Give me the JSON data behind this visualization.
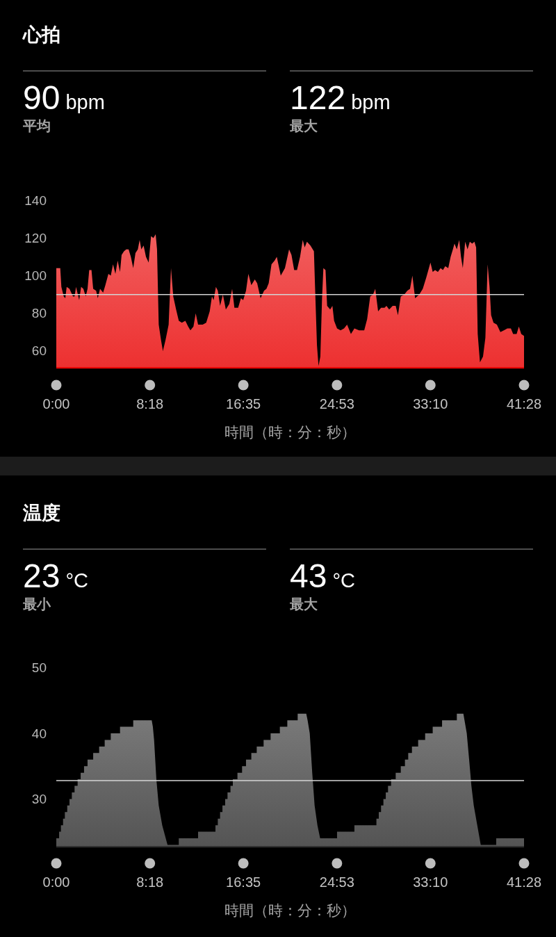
{
  "chart_data": [
    {
      "type": "area",
      "title": "心拍",
      "xlabel": "時間（時：分：秒）",
      "annotations": [
        "90 bpm",
        "平均",
        "122 bpm",
        "最大"
      ],
      "color": "#ef4848",
      "x": [
        0,
        0.35,
        0.45,
        0.66,
        0.8,
        0.92,
        1.17,
        1.48,
        1.62,
        1.75,
        1.83,
        2.03,
        2.2,
        2.4,
        2.61,
        2.77,
        2.92,
        3.12,
        3.27,
        3.53,
        3.68,
        3.88,
        4.15,
        4.35,
        4.62,
        4.83,
        5.03,
        5.24,
        5.44,
        5.65,
        5.79,
        6.0,
        6.2,
        6.41,
        6.61,
        6.82,
        7.02,
        7.23,
        7.39,
        7.54,
        7.74,
        7.95,
        8.19,
        8.4,
        8.61,
        8.81,
        8.93,
        9.08,
        9.28,
        9.45,
        9.69,
        9.96,
        10.17,
        10.37,
        10.62,
        10.86,
        11.13,
        11.44,
        11.69,
        11.89,
        12.16,
        12.36,
        12.57,
        12.98,
        13.29,
        13.6,
        13.8,
        13.95,
        14.15,
        14.32,
        14.52,
        14.77,
        15.03,
        15.34,
        15.59,
        15.79,
        16.12,
        16.37,
        16.57,
        16.82,
        17.03,
        17.29,
        17.6,
        17.81,
        18.11,
        18.42,
        18.63,
        18.83,
        19.08,
        19.35,
        19.55,
        19.9,
        20.27,
        20.64,
        20.85,
        21.09,
        21.34,
        21.61,
        21.85,
        22.02,
        22.22,
        22.53,
        22.84,
        22.94,
        23.11,
        23.25,
        23.41,
        23.56,
        23.68,
        23.87,
        24.01,
        24.28,
        24.48,
        24.63,
        24.89,
        25.2,
        25.51,
        25.78,
        26.12,
        26.43,
        26.84,
        27.3,
        27.56,
        27.83,
        28.08,
        28.28,
        28.53,
        28.79,
        29.1,
        29.27,
        29.51,
        29.82,
        30.09,
        30.29,
        30.54,
        30.85,
        31.12,
        31.36,
        31.57,
        31.81,
        32.18,
        32.49,
        32.8,
        33.17,
        33.37,
        33.58,
        33.83,
        34.07,
        34.28,
        34.48,
        34.75,
        34.96,
        35.16,
        35.3,
        35.51,
        35.72,
        35.88,
        36.04,
        36.25,
        36.46,
        36.66,
        36.87,
        37.07,
        37.22,
        37.36,
        37.56,
        37.83,
        38.04,
        38.24,
        38.41,
        38.55,
        38.76,
        39.06,
        39.37,
        39.68,
        39.99,
        40.3,
        40.5,
        40.81,
        41.01,
        41.22,
        41.467
      ],
      "values": [
        104,
        104,
        94,
        89,
        88,
        94,
        93,
        89,
        89,
        94,
        92,
        87,
        94,
        93,
        89,
        93,
        103,
        103,
        93,
        92,
        88,
        93,
        91,
        95,
        101,
        100,
        106,
        101,
        108,
        102,
        111,
        113,
        114,
        114,
        110,
        104,
        112,
        114,
        119,
        114,
        116,
        110,
        107,
        121,
        120,
        122,
        114,
        74,
        66,
        60,
        66,
        74,
        104,
        89,
        82,
        76,
        75,
        76,
        73,
        71,
        73,
        80,
        74,
        74,
        75,
        81,
        89,
        87,
        94,
        92,
        84,
        90,
        82,
        85,
        93,
        83,
        83,
        88,
        87,
        92,
        101,
        95,
        98,
        96,
        88,
        92,
        93,
        96,
        106,
        108,
        110,
        100,
        104,
        114,
        111,
        103,
        103,
        110,
        119,
        115,
        118,
        116,
        113,
        94,
        63,
        52,
        57,
        88,
        104,
        103,
        84,
        82,
        84,
        76,
        72,
        71,
        72,
        74,
        69,
        72,
        71,
        71,
        77,
        89,
        90,
        93,
        81,
        83,
        83,
        84,
        82,
        84,
        84,
        79,
        89,
        90,
        92,
        93,
        100,
        88,
        90,
        93,
        99,
        107,
        102,
        103,
        102,
        104,
        103,
        105,
        104,
        110,
        114,
        117,
        114,
        119,
        110,
        104,
        118,
        114,
        118,
        117,
        118,
        115,
        69,
        54,
        57,
        67,
        106,
        94,
        79,
        75,
        74,
        70,
        71,
        72,
        72,
        69,
        69,
        73,
        69,
        68
      ],
      "xlim": [
        0,
        41.467
      ],
      "xticks": [
        {
          "value": 0,
          "label": "0:00"
        },
        {
          "value": 8.3,
          "label": "8:18"
        },
        {
          "value": 16.583,
          "label": "16:35"
        },
        {
          "value": 24.883,
          "label": "24:53"
        },
        {
          "value": 33.167,
          "label": "33:10"
        },
        {
          "value": 41.467,
          "label": "41:28"
        }
      ],
      "ylim": [
        51,
        140
      ],
      "yticks": [
        60,
        80,
        100,
        120,
        140
      ],
      "ref_lines": [
        {
          "axis": "y",
          "value": 90,
          "color": "#d4d4d4"
        }
      ]
    },
    {
      "type": "area",
      "title": "温度",
      "xlabel": "時間（時：分：秒）",
      "annotations": [
        "23 °C",
        "最小",
        "43 °C",
        "最大"
      ],
      "color": "#686868",
      "x": [
        0,
        0.25,
        0.25,
        0.41,
        0.41,
        0.6,
        0.6,
        0.76,
        0.76,
        0.97,
        0.97,
        1.17,
        1.17,
        1.38,
        1.38,
        1.62,
        1.62,
        1.89,
        1.89,
        2.16,
        2.16,
        2.46,
        2.46,
        2.77,
        2.77,
        3.27,
        3.27,
        3.8,
        3.8,
        4.29,
        4.29,
        4.83,
        4.83,
        5.65,
        5.65,
        6.82,
        6.82,
        8.46,
        8.56,
        8.67,
        8.87,
        9.08,
        9.39,
        9.86,
        10.86,
        10.86,
        12.57,
        12.57,
        14.11,
        14.11,
        14.32,
        14.32,
        14.52,
        14.52,
        14.73,
        14.73,
        14.97,
        14.97,
        15.18,
        15.18,
        15.44,
        15.44,
        15.65,
        15.65,
        16.06,
        16.06,
        16.47,
        16.47,
        16.82,
        16.82,
        17.29,
        17.29,
        17.77,
        17.77,
        18.38,
        18.38,
        19.0,
        19.0,
        19.82,
        19.82,
        20.48,
        20.48,
        21.4,
        21.4,
        22.16,
        22.28,
        22.47,
        22.69,
        22.9,
        23.15,
        23.39,
        24.89,
        24.89,
        26.43,
        26.43,
        28.38,
        28.38,
        28.59,
        28.59,
        28.79,
        28.79,
        29.0,
        29.0,
        29.21,
        29.21,
        29.41,
        29.41,
        29.68,
        29.68,
        30.09,
        30.09,
        30.54,
        30.54,
        30.91,
        30.91,
        31.2,
        31.2,
        31.53,
        31.53,
        32.08,
        32.08,
        32.7,
        32.7,
        33.37,
        33.37,
        34.2,
        34.2,
        35.51,
        35.51,
        36.09,
        36.19,
        36.39,
        36.6,
        36.8,
        37.01,
        37.32,
        37.63,
        39.0,
        39.0,
        41.467
      ],
      "values": [
        24,
        24,
        25,
        25,
        26,
        26,
        27,
        27,
        28,
        28,
        29,
        29,
        30,
        30,
        31,
        31,
        32,
        32,
        33,
        33,
        34,
        34,
        35,
        35,
        36,
        36,
        37,
        37,
        38,
        38,
        39,
        39,
        40,
        40,
        41,
        41,
        42,
        42,
        41,
        39,
        33,
        29,
        26,
        23,
        23,
        24,
        24,
        25,
        25,
        26,
        26,
        27,
        27,
        28,
        28,
        29,
        29,
        30,
        30,
        31,
        31,
        32,
        32,
        33,
        33,
        34,
        34,
        35,
        35,
        36,
        36,
        37,
        37,
        38,
        38,
        39,
        39,
        40,
        40,
        41,
        41,
        42,
        42,
        43,
        43,
        42,
        40,
        34,
        29,
        26,
        24,
        24,
        25,
        25,
        26,
        26,
        27,
        27,
        28,
        28,
        29,
        29,
        30,
        30,
        31,
        31,
        32,
        32,
        33,
        33,
        34,
        34,
        35,
        35,
        36,
        36,
        37,
        37,
        38,
        38,
        39,
        39,
        40,
        40,
        41,
        41,
        42,
        42,
        43,
        43,
        42,
        40,
        36,
        32,
        29,
        26,
        23,
        23,
        24,
        24
      ],
      "xlim": [
        0,
        41.467
      ],
      "xticks": [
        {
          "value": 0,
          "label": "0:00"
        },
        {
          "value": 8.3,
          "label": "8:18"
        },
        {
          "value": 16.583,
          "label": "16:35"
        },
        {
          "value": 24.883,
          "label": "24:53"
        },
        {
          "value": 33.167,
          "label": "33:10"
        },
        {
          "value": 41.467,
          "label": "41:28"
        }
      ],
      "ylim": [
        22.7,
        50
      ],
      "yticks": [
        30,
        40,
        50
      ],
      "ref_lines": [
        {
          "axis": "y",
          "value": 32.8,
          "color": "#d4d4d4"
        }
      ]
    }
  ]
}
